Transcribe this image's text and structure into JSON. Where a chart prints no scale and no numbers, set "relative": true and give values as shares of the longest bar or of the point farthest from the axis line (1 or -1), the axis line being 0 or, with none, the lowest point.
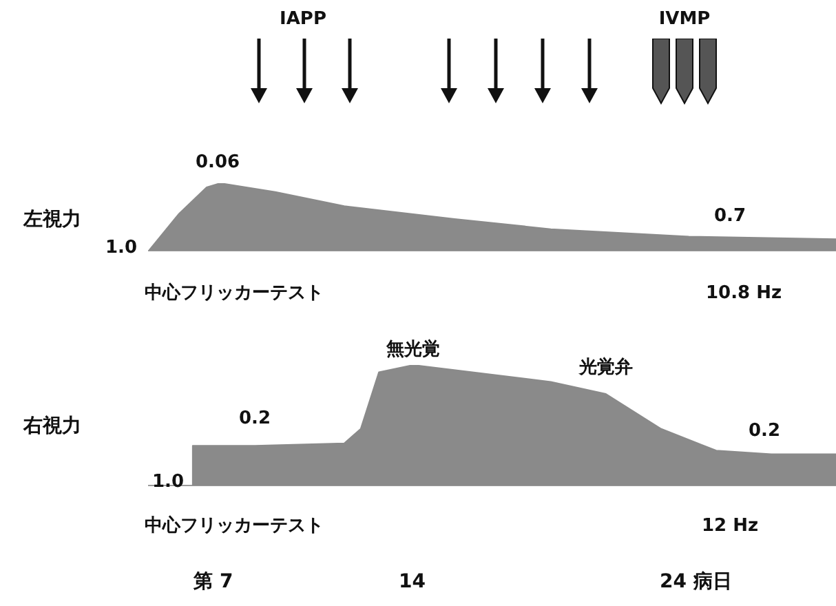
{
  "chart_data": [
    {
      "type": "area",
      "relative": true,
      "ylabel": "左視力",
      "annotations": [
        "IAPP",
        "IVMP",
        "0.06",
        "1.0",
        "0.7",
        "中心フリッカーテスト",
        "10.8 Hz"
      ],
      "xlim": [
        4.72,
        28.94
      ],
      "tick_labels": false,
      "legend": false,
      "grid": false,
      "marker": "none",
      "x": [
        4.72,
        5.79,
        6.76,
        7.24,
        9.18,
        11.61,
        15.5,
        18.89,
        23.75,
        28.94
      ],
      "series": [
        {
          "color": "#8a8a8a",
          "values": [
            0,
            0.55,
            0.94,
            1,
            0.87,
            0.66,
            0.47,
            0.32,
            0.21,
            0.17
          ]
        }
      ]
    },
    {
      "type": "area",
      "relative": true,
      "ylabel": "右視力",
      "annotations": [
        "無光覚",
        "光覚弁",
        "0.2",
        "0.2",
        "1.0",
        "中心フリッカーテスト",
        "12 Hz"
      ],
      "xticks": [
        {
          "value": 7,
          "label": "第 7"
        },
        14,
        {
          "value": 24,
          "label": "24 病日"
        }
      ],
      "xlim": [
        4.72,
        28.94
      ],
      "tick_labels": "x",
      "legend": false,
      "grid": false,
      "marker": "none",
      "x": [
        6.27,
        6.27,
        8.46,
        11.61,
        12.19,
        12.83,
        14.04,
        18.89,
        20.83,
        22.78,
        24.72,
        26.66,
        28.94
      ],
      "series": [
        {
          "color": "#8a8a8a",
          "values": [
            0,
            0.33,
            0.33,
            0.35,
            0.47,
            0.94,
            1,
            0.86,
            0.76,
            0.47,
            0.29,
            0.26,
            0.26
          ]
        }
      ]
    }
  ]
}
